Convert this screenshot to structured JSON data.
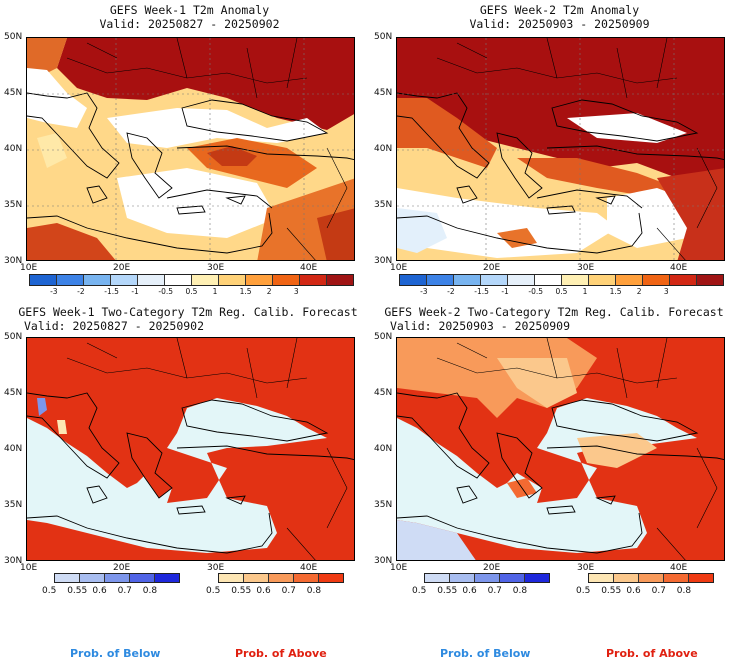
{
  "panels": [
    {
      "title": "GEFS Week-1 T2m Anomaly",
      "valid": "Valid: 20250827 - 20250902"
    },
    {
      "title": "GEFS Week-2 T2m Anomaly",
      "valid": "Valid: 20250903 - 20250909"
    },
    {
      "title": "GEFS Week-1 Two-Category T2m Reg. Calib. Forecast",
      "valid": "Valid: 20250827 - 20250902"
    },
    {
      "title": "GEFS Week-2 Two-Category T2m Reg. Calib. Forecast",
      "valid": "Valid: 20250903 - 20250909"
    }
  ],
  "axes": {
    "lat_labels": [
      "50N",
      "45N",
      "40N",
      "35N",
      "30N"
    ],
    "lon_labels": [
      "10E",
      "20E",
      "30E",
      "40E"
    ]
  },
  "anomaly_colorbar": {
    "labels": [
      "-3",
      "-2",
      "-1.5",
      "-1",
      "-0.5",
      "0.5",
      "1",
      "1.5",
      "2",
      "3"
    ],
    "colors": [
      "#1e64d2",
      "#3c82e6",
      "#78b4f0",
      "#b4d7fa",
      "#e6f0fa",
      "#ffffff",
      "#fff0b4",
      "#ffd278",
      "#ffa03c",
      "#f06414",
      "#d22814",
      "#a01414"
    ]
  },
  "prob_colorbar": {
    "below_labels": [
      "0.5",
      "0.55",
      "0.6",
      "0.7",
      "0.8"
    ],
    "above_labels": [
      "0.5",
      "0.55",
      "0.6",
      "0.7",
      "0.8"
    ],
    "below_colors": [
      "#cfdcf5",
      "#a8bdf0",
      "#7d96eb",
      "#5064e6",
      "#1e28dc"
    ],
    "above_colors": [
      "#fde6b4",
      "#fbc88c",
      "#f89a5a",
      "#f46a32",
      "#ef3a12"
    ]
  },
  "legend": {
    "below": "Prob. of Below",
    "above": "Prob. of Above",
    "below_color": "#2e8ae0",
    "above_color": "#e02010"
  },
  "map_colors": {
    "sea": "#e3f6f8",
    "deep_red": "#a81010",
    "red": "#e23214"
  }
}
